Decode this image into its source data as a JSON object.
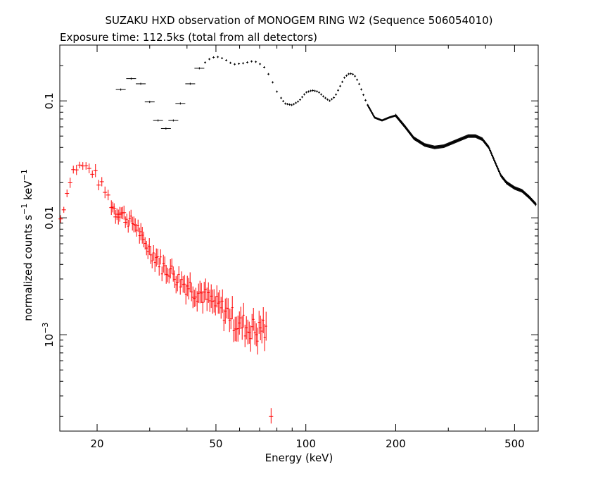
{
  "chart_data": {
    "type": "scatter",
    "title": "SUZAKU HXD observation of MONOGEM RING W2 (Sequence 506054010)",
    "subtitle": "Exposure time: 112.5ks (total from all detectors)",
    "xlabel": "Energy (keV)",
    "ylabel_parts": [
      "normalized counts s",
      "−1",
      " keV",
      "−1"
    ],
    "x_scale": "log",
    "y_scale": "log",
    "xlim": [
      15,
      600
    ],
    "ylim": [
      0.00015,
      0.3
    ],
    "grid": false,
    "x_ticks": [
      {
        "value": 20,
        "label": "20"
      },
      {
        "value": 50,
        "label": "50"
      },
      {
        "value": 100,
        "label": "100"
      },
      {
        "value": 200,
        "label": "200"
      },
      {
        "value": 500,
        "label": "500"
      }
    ],
    "y_ticks": [
      {
        "value": 0.1,
        "label": "0.1"
      },
      {
        "value": 0.01,
        "label": "0.01"
      },
      {
        "value": 0.001,
        "label": "10",
        "exp": "−3"
      }
    ],
    "series": [
      {
        "color": "#000000",
        "points": [
          [
            24,
            0.125
          ],
          [
            26,
            0.155
          ],
          [
            28,
            0.14
          ],
          [
            30,
            0.098
          ],
          [
            32,
            0.068
          ],
          [
            34,
            0.058
          ],
          [
            36,
            0.068
          ],
          [
            38,
            0.095
          ],
          [
            41,
            0.14
          ],
          [
            44,
            0.19
          ],
          [
            47,
            0.225
          ],
          [
            50,
            0.24
          ],
          [
            53,
            0.23
          ],
          [
            57,
            0.205
          ],
          [
            62,
            0.21
          ],
          [
            67,
            0.22
          ],
          [
            72,
            0.2
          ],
          [
            76,
            0.16
          ],
          [
            80,
            0.12
          ],
          [
            85,
            0.095
          ],
          [
            90,
            0.092
          ],
          [
            95,
            0.1
          ],
          [
            100,
            0.118
          ],
          [
            105,
            0.123
          ],
          [
            110,
            0.12
          ],
          [
            115,
            0.108
          ],
          [
            120,
            0.1
          ],
          [
            125,
            0.108
          ],
          [
            130,
            0.132
          ],
          [
            135,
            0.16
          ],
          [
            140,
            0.172
          ],
          [
            145,
            0.168
          ],
          [
            150,
            0.145
          ],
          [
            160,
            0.095
          ],
          [
            170,
            0.072
          ],
          [
            180,
            0.068
          ],
          [
            190,
            0.072
          ],
          [
            200,
            0.075
          ],
          [
            215,
            0.06
          ],
          [
            230,
            0.048
          ],
          [
            250,
            0.042
          ],
          [
            270,
            0.04
          ],
          [
            290,
            0.041
          ],
          [
            310,
            0.044
          ],
          [
            330,
            0.047
          ],
          [
            350,
            0.05
          ],
          [
            370,
            0.05
          ],
          [
            390,
            0.047
          ],
          [
            410,
            0.04
          ],
          [
            430,
            0.03
          ],
          [
            450,
            0.023
          ],
          [
            470,
            0.02
          ],
          [
            500,
            0.018
          ],
          [
            530,
            0.017
          ],
          [
            560,
            0.015
          ],
          [
            590,
            0.013
          ]
        ]
      },
      {
        "color": "#ff0000",
        "points": [
          [
            15.1,
            0.0098
          ],
          [
            15.6,
            0.0135
          ],
          [
            16.2,
            0.021
          ],
          [
            16.7,
            0.026
          ],
          [
            17.2,
            0.027
          ],
          [
            17.8,
            0.028
          ],
          [
            18.3,
            0.027
          ],
          [
            18.9,
            0.026
          ],
          [
            19.4,
            0.025
          ],
          [
            20,
            0.022
          ],
          [
            20.6,
            0.019
          ],
          [
            21.2,
            0.017
          ],
          [
            21.8,
            0.015
          ],
          [
            22.4,
            0.013
          ],
          [
            23.1,
            0.011
          ],
          [
            23.8,
            0.0115
          ],
          [
            24.5,
            0.0105
          ],
          [
            25.2,
            0.0098
          ],
          [
            26,
            0.0092
          ],
          [
            26.8,
            0.0088
          ],
          [
            27.6,
            0.0078
          ],
          [
            28.4,
            0.0062
          ],
          [
            29.3,
            0.0058
          ],
          [
            30.2,
            0.0052
          ],
          [
            31.1,
            0.0048
          ],
          [
            32,
            0.0045
          ],
          [
            33,
            0.0039
          ],
          [
            34,
            0.0036
          ],
          [
            35,
            0.0037
          ],
          [
            36,
            0.0033
          ],
          [
            37,
            0.0031
          ],
          [
            38,
            0.0029
          ],
          [
            39.5,
            0.0027
          ],
          [
            41,
            0.0026
          ],
          [
            42.5,
            0.0024
          ],
          [
            44,
            0.0023
          ],
          [
            45.5,
            0.0022
          ],
          [
            47,
            0.002
          ],
          [
            48.5,
            0.0019
          ],
          [
            50,
            0.0018
          ],
          [
            52,
            0.0017
          ],
          [
            54,
            0.0016
          ],
          [
            56,
            0.0015
          ],
          [
            58,
            0.0013
          ],
          [
            60,
            0.0012
          ],
          [
            62,
            0.00125
          ],
          [
            64,
            0.0011
          ],
          [
            66,
            0.0012
          ],
          [
            68,
            0.00105
          ],
          [
            70,
            0.0011
          ],
          [
            72,
            0.0012
          ],
          [
            74,
            0.00095
          ],
          [
            76.5,
            0.0002
          ]
        ]
      }
    ]
  }
}
